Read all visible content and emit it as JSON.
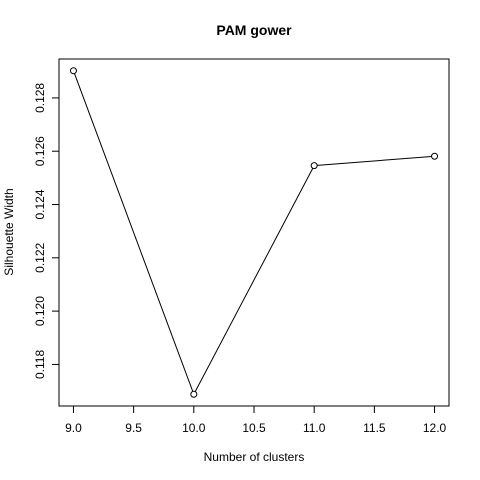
{
  "chart_data": {
    "type": "line",
    "title": "PAM gower",
    "xlabel": "Number of clusters",
    "ylabel": "Silhouette Width",
    "x": [
      9,
      10,
      11,
      12
    ],
    "y": [
      0.12902,
      0.11688,
      0.12546,
      0.12581
    ],
    "xlim": [
      8.88,
      12.12
    ],
    "ylim": [
      0.11644,
      0.12946
    ],
    "xticks": [
      "9.0",
      "9.5",
      "10.0",
      "10.5",
      "11.0",
      "11.5",
      "12.0"
    ],
    "xtick_values": [
      9.0,
      9.5,
      10.0,
      10.5,
      11.0,
      11.5,
      12.0
    ],
    "yticks": [
      "0.118",
      "0.120",
      "0.122",
      "0.124",
      "0.126",
      "0.128"
    ],
    "ytick_values": [
      0.118,
      0.12,
      0.122,
      0.124,
      0.126,
      0.128
    ],
    "marker": "open-circle",
    "grid": false,
    "line_color": "#000000"
  }
}
